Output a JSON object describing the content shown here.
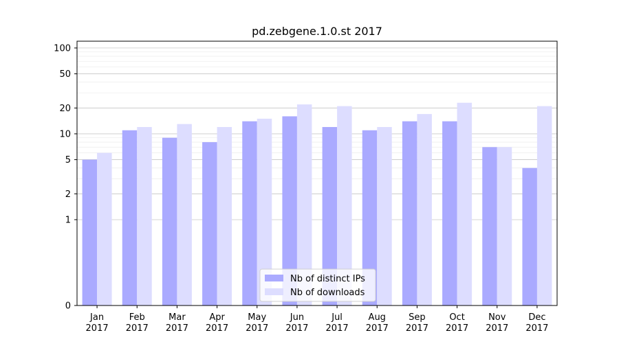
{
  "chart_data": {
    "type": "bar",
    "title": "pd.zebgene.1.0.st 2017",
    "xlabel": "",
    "ylabel": "",
    "y_scale": "symlog",
    "ylim": [
      0,
      120
    ],
    "y_ticks": [
      0,
      1,
      2,
      5,
      10,
      20,
      50,
      100
    ],
    "y_tick_labels": [
      "0",
      "1",
      "2",
      "5",
      "10",
      "20",
      "50",
      "100"
    ],
    "categories": [
      "Jan\n2017",
      "Feb\n2017",
      "Mar\n2017",
      "Apr\n2017",
      "May\n2017",
      "Jun\n2017",
      "Jul\n2017",
      "Aug\n2017",
      "Sep\n2017",
      "Oct\n2017",
      "Nov\n2017",
      "Dec\n2017"
    ],
    "series": [
      {
        "name": "Nb of distinct IPs",
        "color": "#aaaaff",
        "values": [
          5,
          11,
          9,
          8,
          14,
          16,
          12,
          11,
          14,
          14,
          7,
          4
        ]
      },
      {
        "name": "Nb of downloads",
        "color": "#ddddff",
        "values": [
          6,
          12,
          13,
          12,
          15,
          22,
          21,
          12,
          17,
          23,
          7,
          21
        ]
      }
    ],
    "grid": true,
    "legend_position": "lower-center"
  }
}
